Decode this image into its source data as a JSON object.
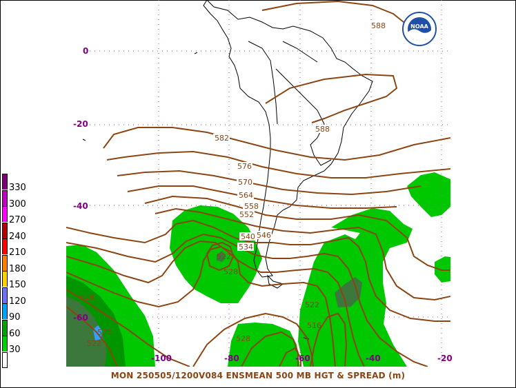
{
  "map": {
    "latitude_labels": [
      "0",
      "-20",
      "-40",
      "-60"
    ],
    "longitude_labels": [
      "-100",
      "-80",
      "-60",
      "-40",
      "-20"
    ],
    "contour_labels": [
      "588",
      "588",
      "582",
      "576",
      "570",
      "564",
      "558",
      "552",
      "546",
      "540",
      "534",
      "522",
      "528",
      "522",
      "516",
      "528",
      "522",
      "528",
      "522"
    ],
    "colors": {
      "height_contour": "#8b4513",
      "spread_fill_light": "#00c800",
      "spread_fill_mid": "#009600",
      "spread_fill_dark": "#3c783c",
      "grid_dots": "#b040b0",
      "coastline": "#000000"
    }
  },
  "legend": {
    "entries": [
      {
        "value": "330",
        "color": "#7a007a"
      },
      {
        "value": "300",
        "color": "#c000c0"
      },
      {
        "value": "270",
        "color": "#ff00ff"
      },
      {
        "value": "240",
        "color": "#b00000"
      },
      {
        "value": "210",
        "color": "#ff0000"
      },
      {
        "value": "180",
        "color": "#ff8000"
      },
      {
        "value": "150",
        "color": "#ffd000"
      },
      {
        "value": "120",
        "color": "#7070ff"
      },
      {
        "value": "90",
        "color": "#00a0ff"
      },
      {
        "value": "60",
        "color": "#00a000"
      },
      {
        "value": "30",
        "color": "#00d000"
      },
      {
        "value": "",
        "color": "#ffffff"
      }
    ]
  },
  "logo": {
    "text": "NOAA",
    "icon": "noaa-logo-icon"
  },
  "caption": "MON 250505/1200V084  ENSMEAN 500 MB HGT & SPREAD (m)"
}
